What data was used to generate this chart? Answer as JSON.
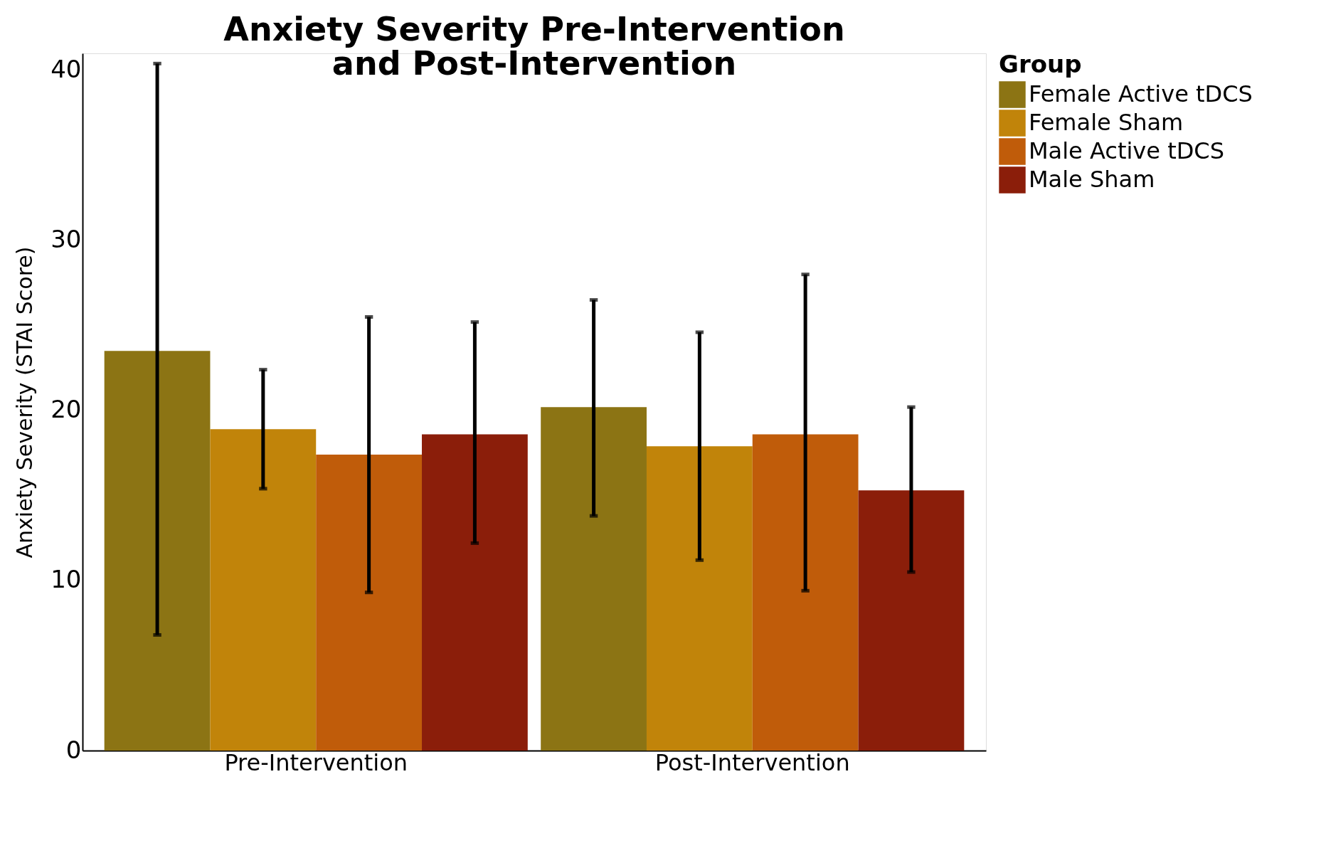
{
  "chart_data": {
    "type": "bar",
    "title": "Anxiety Severity Pre-Intervention and Post-Intervention",
    "ylabel": "Anxiety Severity (STAI Score)",
    "legend_title": "Group",
    "legend": "right",
    "grid": false,
    "categories": [
      "Pre-Intervention",
      "Post-Intervention"
    ],
    "ylim": [
      0,
      41
    ],
    "yticks": [
      0,
      10,
      20,
      30,
      40
    ],
    "series": [
      {
        "name": "Female Active tDCS",
        "color": "#8c7414",
        "values": [
          23.5,
          20.2
        ],
        "errors": [
          [
            6.8,
            40.4
          ],
          [
            13.8,
            26.5
          ]
        ]
      },
      {
        "name": "Female Sham",
        "color": "#c1840a",
        "values": [
          18.9,
          17.9
        ],
        "errors": [
          [
            15.4,
            22.4
          ],
          [
            11.2,
            24.6
          ]
        ]
      },
      {
        "name": "Male Active tDCS",
        "color": "#c05c0a",
        "values": [
          17.4,
          18.6
        ],
        "errors": [
          [
            9.3,
            25.5
          ],
          [
            9.4,
            28.0
          ]
        ]
      },
      {
        "name": "Male Sham",
        "color": "#8b1e0a",
        "values": [
          18.6,
          15.3
        ],
        "errors": [
          [
            12.2,
            25.2
          ],
          [
            10.5,
            20.2
          ]
        ]
      }
    ]
  }
}
